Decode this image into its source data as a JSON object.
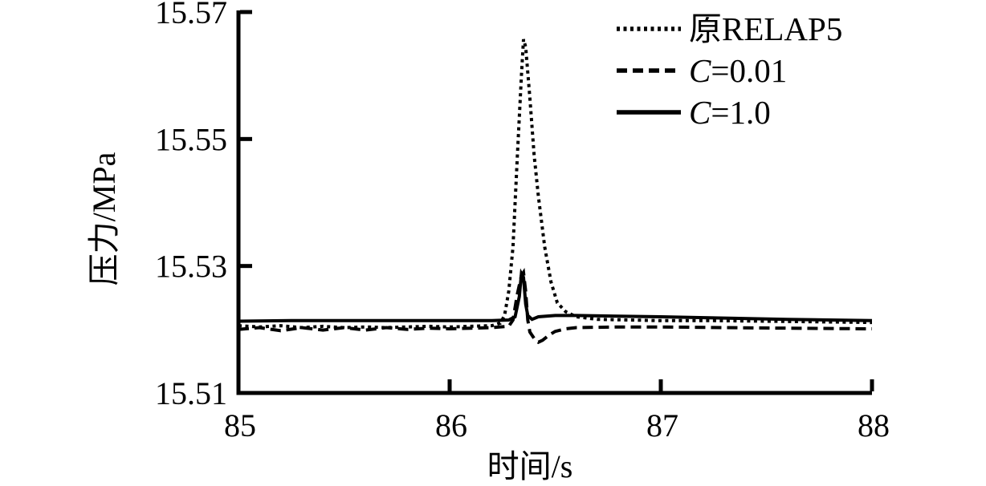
{
  "figure": {
    "background": "#ffffff",
    "ink": "#000000"
  },
  "chart_data": {
    "type": "line",
    "title": "",
    "xlabel": "时间/s",
    "ylabel": "压力/MPa",
    "xlim": [
      85,
      88
    ],
    "ylim": [
      15.51,
      15.57
    ],
    "x_ticks": [
      85,
      86,
      87,
      88
    ],
    "x_tick_labels": [
      "85",
      "86",
      "87",
      "88"
    ],
    "y_ticks": [
      15.51,
      15.53,
      15.55,
      15.57
    ],
    "y_tick_labels": [
      "15.51",
      "15.53",
      "15.55",
      "15.57"
    ],
    "grid": false,
    "legend_position": "top-right-inside",
    "line_color": "#000000",
    "series": [
      {
        "name": "原RELAP5",
        "legend_italic": "",
        "legend_label": "原RELAP5",
        "line_style": "dotted",
        "points": [
          [
            85.0,
            15.5206
          ],
          [
            85.1,
            15.5204
          ],
          [
            85.2,
            15.5206
          ],
          [
            85.3,
            15.5203
          ],
          [
            85.4,
            15.5205
          ],
          [
            85.5,
            15.5203
          ],
          [
            85.6,
            15.5204
          ],
          [
            85.7,
            15.5203
          ],
          [
            85.8,
            15.5204
          ],
          [
            85.9,
            15.5205
          ],
          [
            86.0,
            15.5204
          ],
          [
            86.1,
            15.5205
          ],
          [
            86.2,
            15.5206
          ],
          [
            86.24,
            15.521
          ],
          [
            86.26,
            15.5222
          ],
          [
            86.28,
            15.526
          ],
          [
            86.3,
            15.533
          ],
          [
            86.32,
            15.547
          ],
          [
            86.34,
            15.56
          ],
          [
            86.35,
            15.5657
          ],
          [
            86.36,
            15.5645
          ],
          [
            86.38,
            15.5565
          ],
          [
            86.4,
            15.5475
          ],
          [
            86.42,
            15.541
          ],
          [
            86.45,
            15.533
          ],
          [
            86.48,
            15.5275
          ],
          [
            86.51,
            15.5242
          ],
          [
            86.55,
            15.5228
          ],
          [
            86.6,
            15.522
          ],
          [
            86.7,
            15.5216
          ],
          [
            86.85,
            15.5215
          ],
          [
            87.0,
            15.5214
          ],
          [
            87.25,
            15.5214
          ],
          [
            87.5,
            15.5213
          ],
          [
            87.75,
            15.5212
          ],
          [
            88.0,
            15.5211
          ]
        ]
      },
      {
        "name": "C=0.01",
        "legend_italic": "C",
        "legend_label": "=0.01",
        "line_style": "dashed",
        "points": [
          [
            85.0,
            15.52
          ],
          [
            85.1,
            15.5203
          ],
          [
            85.2,
            15.5198
          ],
          [
            85.3,
            15.5203
          ],
          [
            85.4,
            15.5199
          ],
          [
            85.5,
            15.5203
          ],
          [
            85.6,
            15.5199
          ],
          [
            85.7,
            15.5203
          ],
          [
            85.8,
            15.52
          ],
          [
            85.9,
            15.5202
          ],
          [
            86.0,
            15.5201
          ],
          [
            86.1,
            15.5202
          ],
          [
            86.2,
            15.5203
          ],
          [
            86.28,
            15.5205
          ],
          [
            86.3,
            15.5215
          ],
          [
            86.32,
            15.5255
          ],
          [
            86.34,
            15.5285
          ],
          [
            86.35,
            15.529
          ],
          [
            86.36,
            15.526
          ],
          [
            86.37,
            15.5215
          ],
          [
            86.38,
            15.5196
          ],
          [
            86.4,
            15.5186
          ],
          [
            86.42,
            15.518
          ],
          [
            86.44,
            15.5183
          ],
          [
            86.47,
            15.5191
          ],
          [
            86.5,
            15.5197
          ],
          [
            86.55,
            15.5201
          ],
          [
            86.6,
            15.5203
          ],
          [
            86.8,
            15.5204
          ],
          [
            87.0,
            15.5204
          ],
          [
            87.3,
            15.5203
          ],
          [
            87.6,
            15.5202
          ],
          [
            88.0,
            15.5201
          ]
        ]
      },
      {
        "name": "C=1.0",
        "legend_italic": "C",
        "legend_label": "=1.0",
        "line_style": "solid",
        "points": [
          [
            85.0,
            15.5213
          ],
          [
            85.25,
            15.5214
          ],
          [
            85.5,
            15.5214
          ],
          [
            85.75,
            15.5214
          ],
          [
            86.0,
            15.5214
          ],
          [
            86.2,
            15.5214
          ],
          [
            86.28,
            15.5215
          ],
          [
            86.31,
            15.522
          ],
          [
            86.33,
            15.5252
          ],
          [
            86.34,
            15.5288
          ],
          [
            86.35,
            15.5282
          ],
          [
            86.36,
            15.524
          ],
          [
            86.37,
            15.5222
          ],
          [
            86.39,
            15.5216
          ],
          [
            86.42,
            15.522
          ],
          [
            86.5,
            15.5222
          ],
          [
            86.6,
            15.5222
          ],
          [
            86.8,
            15.5221
          ],
          [
            87.0,
            15.522
          ],
          [
            87.3,
            15.5218
          ],
          [
            87.6,
            15.5216
          ],
          [
            88.0,
            15.5214
          ]
        ]
      }
    ]
  }
}
